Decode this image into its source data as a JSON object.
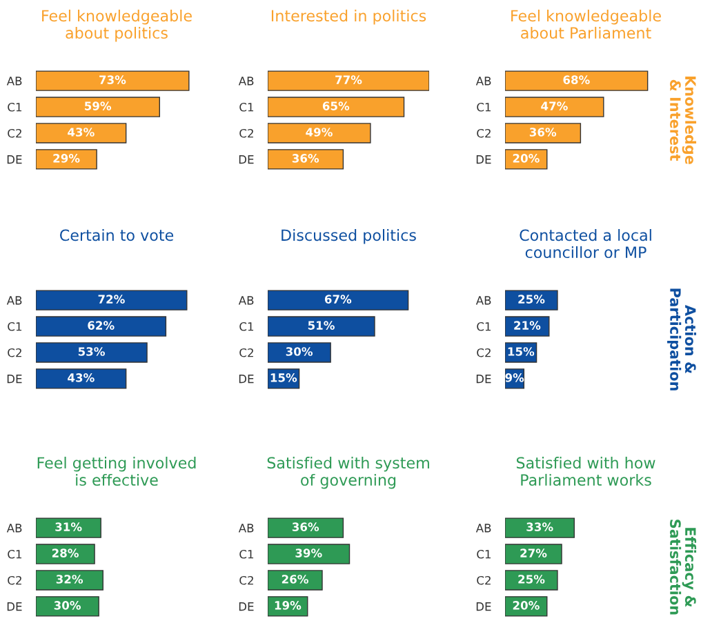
{
  "chart_data": [
    {
      "type": "bar",
      "orientation": "horizontal",
      "title": "Feel knowledgeable\nabout politics",
      "categories": [
        "AB",
        "C1",
        "C2",
        "DE"
      ],
      "values": [
        73,
        59,
        43,
        29
      ],
      "value_labels": [
        "73%",
        "59%",
        "43%",
        "29%"
      ],
      "color": "#f9a12c",
      "tick_labels": "y"
    },
    {
      "type": "bar",
      "orientation": "horizontal",
      "title": "Interested in politics",
      "categories": [
        "AB",
        "C1",
        "C2",
        "DE"
      ],
      "values": [
        77,
        65,
        49,
        36
      ],
      "value_labels": [
        "77%",
        "65%",
        "49%",
        "36%"
      ],
      "color": "#f9a12c",
      "tick_labels": "y"
    },
    {
      "type": "bar",
      "orientation": "horizontal",
      "title": "Feel knowledgeable\nabout Parliament",
      "categories": [
        "AB",
        "C1",
        "C2",
        "DE"
      ],
      "values": [
        68,
        47,
        36,
        20
      ],
      "value_labels": [
        "68%",
        "47%",
        "36%",
        "20%"
      ],
      "color": "#f9a12c",
      "tick_labels": "y",
      "annotations": [
        "Knowledge\n& Interest"
      ]
    },
    {
      "type": "bar",
      "orientation": "horizontal",
      "title": "Certain to vote",
      "categories": [
        "AB",
        "C1",
        "C2",
        "DE"
      ],
      "values": [
        72,
        62,
        53,
        43
      ],
      "value_labels": [
        "72%",
        "62%",
        "53%",
        "43%"
      ],
      "color": "#0e4fa0",
      "tick_labels": "y"
    },
    {
      "type": "bar",
      "orientation": "horizontal",
      "title": "Discussed politics",
      "categories": [
        "AB",
        "C1",
        "C2",
        "DE"
      ],
      "values": [
        67,
        51,
        30,
        15
      ],
      "value_labels": [
        "67%",
        "51%",
        "30%",
        "15%"
      ],
      "color": "#0e4fa0",
      "tick_labels": "y"
    },
    {
      "type": "bar",
      "orientation": "horizontal",
      "title": "Contacted a local\ncouncillor or MP",
      "categories": [
        "AB",
        "C1",
        "C2",
        "DE"
      ],
      "values": [
        25,
        21,
        15,
        9
      ],
      "value_labels": [
        "25%",
        "21%",
        "15%",
        "9%"
      ],
      "color": "#0e4fa0",
      "tick_labels": "y",
      "annotations": [
        "Action &\nParticipation"
      ]
    },
    {
      "type": "bar",
      "orientation": "horizontal",
      "title": "Feel getting involved\nis effective",
      "categories": [
        "AB",
        "C1",
        "C2",
        "DE"
      ],
      "values": [
        31,
        28,
        32,
        30
      ],
      "value_labels": [
        "31%",
        "28%",
        "32%",
        "30%"
      ],
      "color": "#2e9a55",
      "tick_labels": "y"
    },
    {
      "type": "bar",
      "orientation": "horizontal",
      "title": "Satisfied with system\nof governing",
      "categories": [
        "AB",
        "C1",
        "C2",
        "DE"
      ],
      "values": [
        36,
        39,
        26,
        19
      ],
      "value_labels": [
        "36%",
        "39%",
        "26%",
        "19%"
      ],
      "color": "#2e9a55",
      "tick_labels": "y"
    },
    {
      "type": "bar",
      "orientation": "horizontal",
      "title": "Satisfied with how\nParliament works",
      "categories": [
        "AB",
        "C1",
        "C2",
        "DE"
      ],
      "values": [
        33,
        27,
        25,
        20
      ],
      "value_labels": [
        "33%",
        "27%",
        "25%",
        "20%"
      ],
      "color": "#2e9a55",
      "tick_labels": "y",
      "annotations": [
        "Efficacy &\nSatisfaction"
      ]
    }
  ]
}
